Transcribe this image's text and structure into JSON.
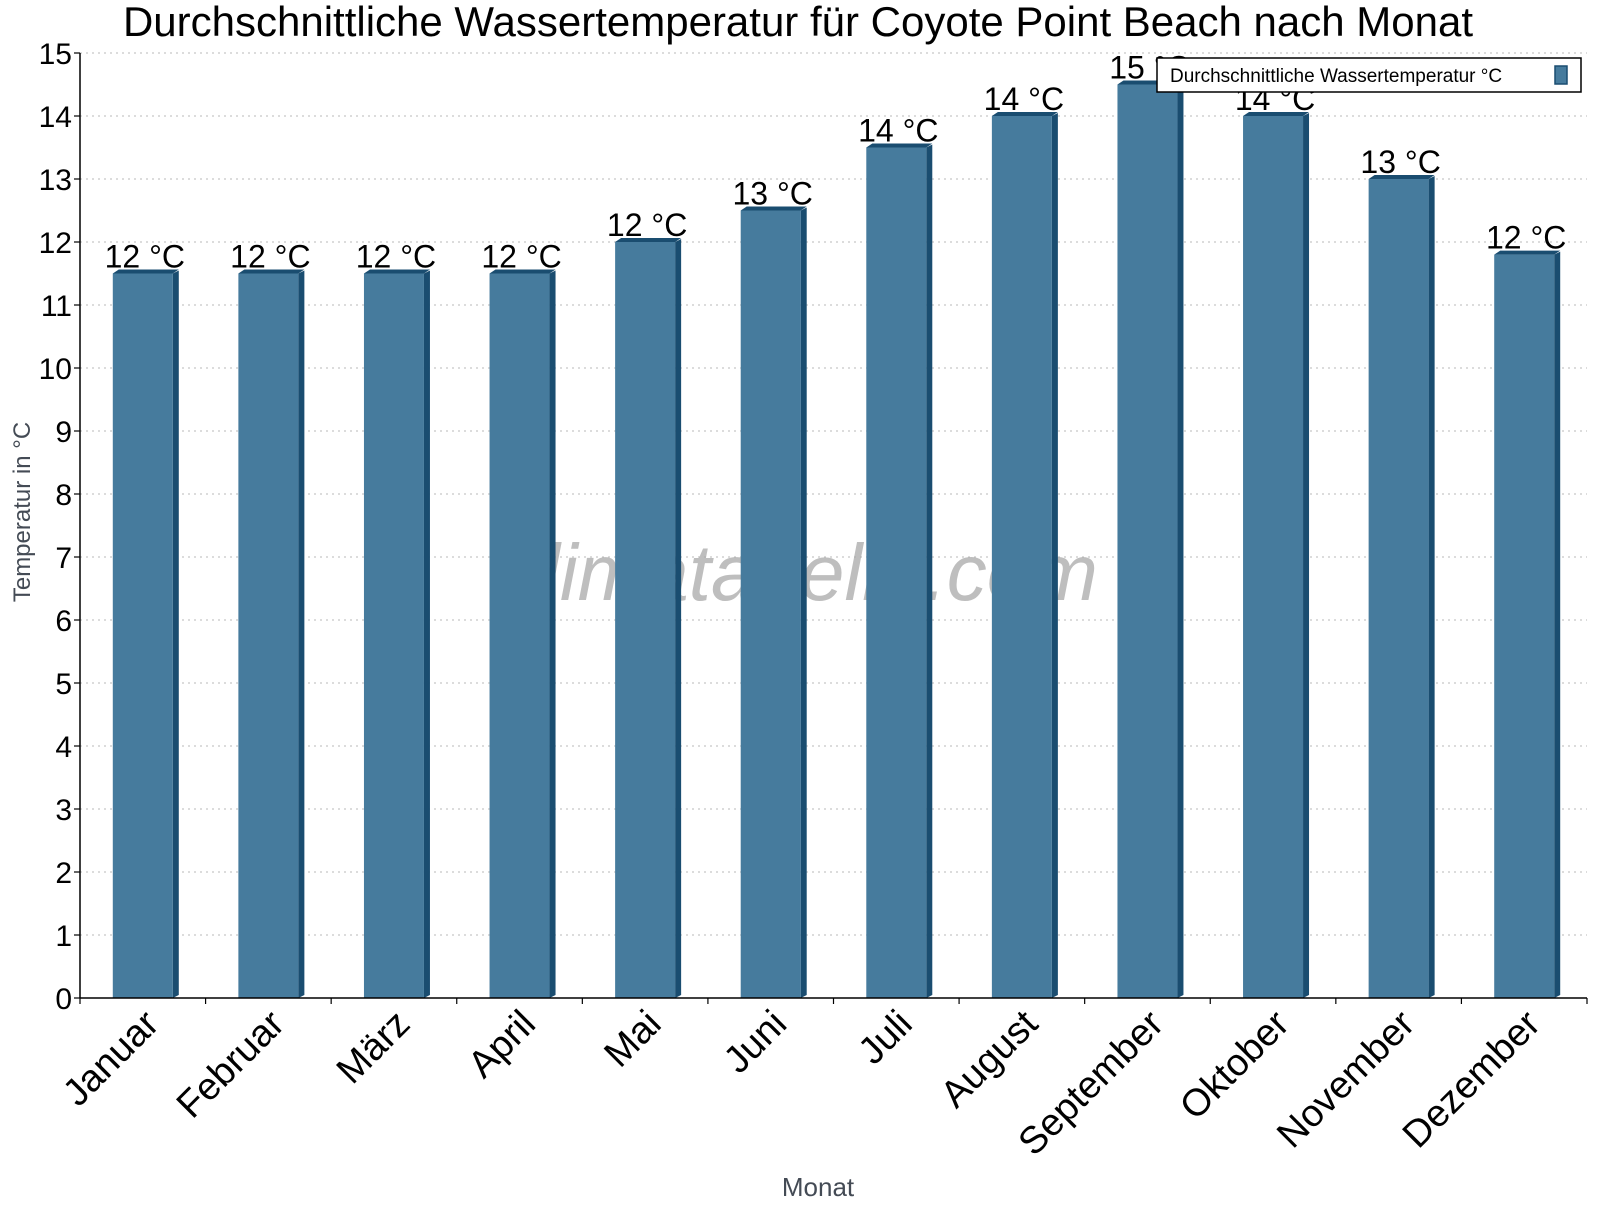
{
  "chart_data": {
    "type": "bar",
    "title": "Durchschnittliche Wassertemperatur für Coyote Point Beach nach Monat",
    "xlabel": "Monat",
    "ylabel": "Temperatur in °C",
    "categories": [
      "Januar",
      "Februar",
      "März",
      "April",
      "Mai",
      "Juni",
      "Juli",
      "August",
      "September",
      "Oktober",
      "November",
      "Dezember"
    ],
    "series": [
      {
        "name": "Durchschnittliche Wassertemperatur °C",
        "color": "#467b9d",
        "values": [
          11.5,
          11.5,
          11.5,
          11.5,
          12.0,
          12.5,
          13.5,
          14.0,
          14.5,
          14.0,
          13.0,
          11.8
        ],
        "labels": [
          "12 °C",
          "12 °C",
          "12 °C",
          "12 °C",
          "12 °C",
          "13 °C",
          "14 °C",
          "14 °C",
          "15 °C",
          "14 °C",
          "13 °C",
          "12 °C"
        ]
      }
    ],
    "ylim": [
      0,
      15
    ],
    "yticks": [
      0,
      1,
      2,
      3,
      4,
      5,
      6,
      7,
      8,
      9,
      10,
      11,
      12,
      13,
      14,
      15
    ],
    "grid": true,
    "legend_position": "top-right"
  },
  "watermark": "klimatabelle.com"
}
